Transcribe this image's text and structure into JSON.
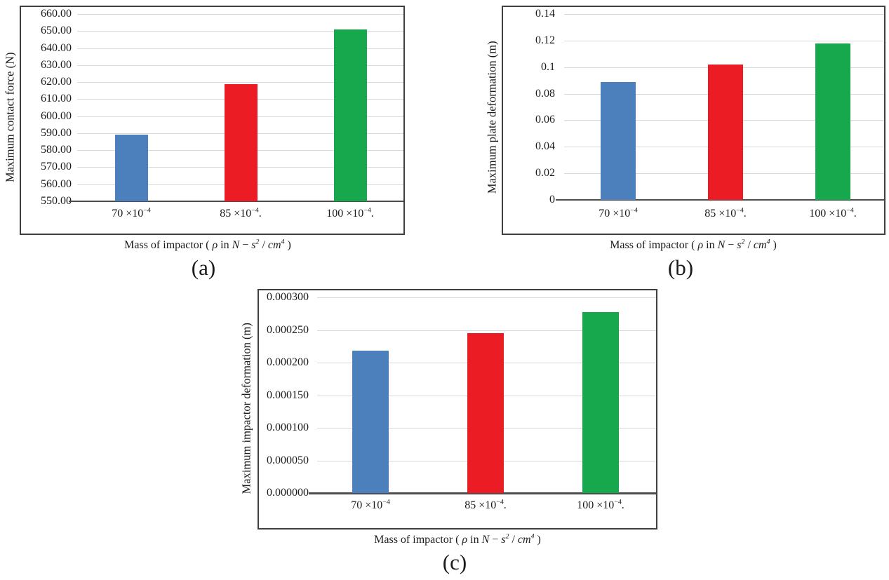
{
  "figure": {
    "background": "#FFFFFF",
    "description_panels": [
      "(a)",
      "(b)",
      "(c)"
    ]
  },
  "colors": {
    "bar_blue": "#4B80BD",
    "bar_red": "#EC1C24",
    "bar_green": "#17A84E",
    "gridline": "#D9D9D9",
    "axis_line": "#4D4D4D",
    "box_border": "#3F3F3F",
    "text": "#1A1A1A"
  },
  "x_axis_title": {
    "prefix": "Mass of impactor ( ",
    "rho": "ρ",
    "infix": " in ",
    "var_n": "N",
    "minus": " − ",
    "var_s": "s",
    "s_exponent": "2",
    "slash": " / ",
    "var_cm": "cm",
    "cm_exponent": "4",
    "suffix": " )"
  },
  "category_labels": [
    {
      "base": "70 ×10",
      "exponent": "−4",
      "tail": ""
    },
    {
      "base": "85 ×10",
      "exponent": "−4",
      "tail": "."
    },
    {
      "base": "100 ×10",
      "exponent": "−4",
      "tail": "."
    }
  ],
  "chart_data": [
    {
      "type": "bar",
      "panel_label": "(a)",
      "ylabel": "Maximum contact force (N)",
      "xlabel": "Mass of impactor (ρ in N − s² / cm⁴)",
      "categories": [
        "70×10⁻⁴",
        "85×10⁻⁴.",
        "100×10⁻⁴."
      ],
      "values": [
        589,
        619,
        651
      ],
      "bar_colors": [
        "#4B80BD",
        "#EC1C24",
        "#17A84E"
      ],
      "ylim": [
        550,
        660
      ],
      "ytick_step": 10,
      "ytick_labels": [
        "660.00",
        "650.00",
        "640.00",
        "630.00",
        "620.00",
        "610.00",
        "600.00",
        "590.00",
        "580.00",
        "570.00",
        "560.00",
        "550.00"
      ],
      "grid": true,
      "legend": false
    },
    {
      "type": "bar",
      "panel_label": "(b)",
      "ylabel": "Maximum plate deformation (m)",
      "xlabel": "Mass of impactor (ρ in N − s² / cm⁴)",
      "categories": [
        "70×10⁻⁴",
        "85×10⁻⁴.",
        "100×10⁻⁴."
      ],
      "values": [
        0.089,
        0.102,
        0.118
      ],
      "bar_colors": [
        "#4B80BD",
        "#EC1C24",
        "#17A84E"
      ],
      "ylim": [
        0,
        0.14
      ],
      "ytick_step": 0.02,
      "ytick_labels": [
        "0.14",
        "0.12",
        "0.1",
        "0.08",
        "0.06",
        "0.04",
        "0.02",
        "0"
      ],
      "grid": true,
      "legend": false
    },
    {
      "type": "bar",
      "panel_label": "(c)",
      "ylabel": "Maximum impactor deformation (m)",
      "xlabel": "Mass of impactor (ρ in N − s² / cm⁴)",
      "categories": [
        "70×10⁻⁴",
        "85×10⁻⁴.",
        "100×10⁻⁴."
      ],
      "values": [
        0.000218,
        0.000245,
        0.000277
      ],
      "bar_colors": [
        "#4B80BD",
        "#EC1C24",
        "#17A84E"
      ],
      "ylim": [
        0,
        0.0003
      ],
      "ytick_step": 5e-05,
      "ytick_labels": [
        "0.000300",
        "0.000250",
        "0.000200",
        "0.000150",
        "0.000100",
        "0.000050",
        "0.000000"
      ],
      "grid": true,
      "legend": false
    }
  ]
}
